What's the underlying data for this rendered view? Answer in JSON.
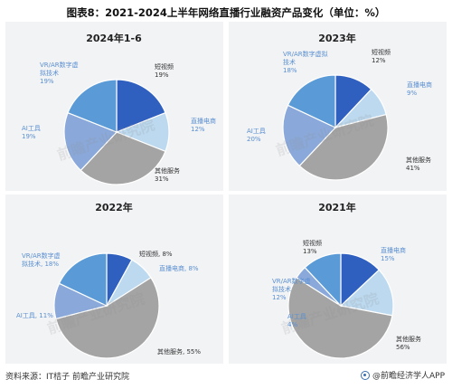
{
  "page_title": "图表8：2021-2024上半年网络直播行业融资产品变化（单位：%）",
  "footer": {
    "source": "资料来源：IT桔子 前瞻产业研究院",
    "brand": "@前瞻经济学人APP"
  },
  "watermark": "前瞻产业研究院",
  "colors": {
    "short_video": "#2f5fbf",
    "live_ecommerce": "#bcd9ef",
    "other_services": "#a4a4a4",
    "ai_tools": "#8aa9da",
    "vr_ar": "#5a9ad6",
    "panel_bg": "#f2f3f5",
    "label_blue": "#5a8fd0",
    "label_dark": "#3a3a3a"
  },
  "chart_data": [
    {
      "type": "pie",
      "title": "2024年1-6",
      "slices": [
        {
          "name": "短视频",
          "value": 19,
          "label": "短视频\n19%",
          "color_key": "short_video"
        },
        {
          "name": "直播电商",
          "value": 12,
          "label": "直播电商\n12%",
          "color_key": "live_ecommerce"
        },
        {
          "name": "其他服务",
          "value": 31,
          "label": "其他服务\n31%",
          "color_key": "other_services"
        },
        {
          "name": "AI工具",
          "value": 19,
          "label": "AI工具\n19%",
          "color_key": "ai_tools"
        },
        {
          "name": "VR/AR数字虚拟技术",
          "value": 19,
          "label": "VR/AR数字虚\n拟技术\n19%",
          "color_key": "vr_ar"
        }
      ]
    },
    {
      "type": "pie",
      "title": "2023年",
      "slices": [
        {
          "name": "短视频",
          "value": 12,
          "label": "短视频\n12%",
          "color_key": "short_video"
        },
        {
          "name": "直播电商",
          "value": 9,
          "label": "直播电商\n9%",
          "color_key": "live_ecommerce"
        },
        {
          "name": "其他服务",
          "value": 41,
          "label": "其他服务\n41%",
          "color_key": "other_services"
        },
        {
          "name": "AI工具",
          "value": 20,
          "label": "AI工具\n20%",
          "color_key": "ai_tools"
        },
        {
          "name": "VR/AR数字虚拟技术",
          "value": 18,
          "label": "VR/AR数字虚拟\n技术\n18%",
          "color_key": "vr_ar"
        }
      ]
    },
    {
      "type": "pie",
      "title": "2022年",
      "slices": [
        {
          "name": "短视频",
          "value": 8,
          "label": "短视频, 8%",
          "color_key": "short_video"
        },
        {
          "name": "直播电商",
          "value": 8,
          "label": "直播电商, 8%",
          "color_key": "live_ecommerce"
        },
        {
          "name": "其他服务",
          "value": 55,
          "label": "其他服务, 55%",
          "color_key": "other_services"
        },
        {
          "name": "AI工具",
          "value": 11,
          "label": "AI工具, 11%",
          "color_key": "ai_tools"
        },
        {
          "name": "VR/AR数字虚拟技术",
          "value": 18,
          "label": "VR/AR数字虚\n拟技术, 18%",
          "color_key": "vr_ar"
        }
      ]
    },
    {
      "type": "pie",
      "title": "2021年",
      "slices": [
        {
          "name": "短视频",
          "value": 13,
          "label": "短视频\n13%",
          "color_key": "short_video"
        },
        {
          "name": "直播电商",
          "value": 15,
          "label": "直播电商\n15%",
          "color_key": "live_ecommerce"
        },
        {
          "name": "其他服务",
          "value": 56,
          "label": "其他服务\n56%",
          "color_key": "other_services"
        },
        {
          "name": "AI工具",
          "value": 4,
          "label": "AI工具\n4%",
          "color_key": "ai_tools"
        },
        {
          "name": "VR/AR数字虚拟技术",
          "value": 12,
          "label": "VR/AR数字虚\n拟技术\n12%",
          "color_key": "vr_ar"
        }
      ]
    }
  ]
}
